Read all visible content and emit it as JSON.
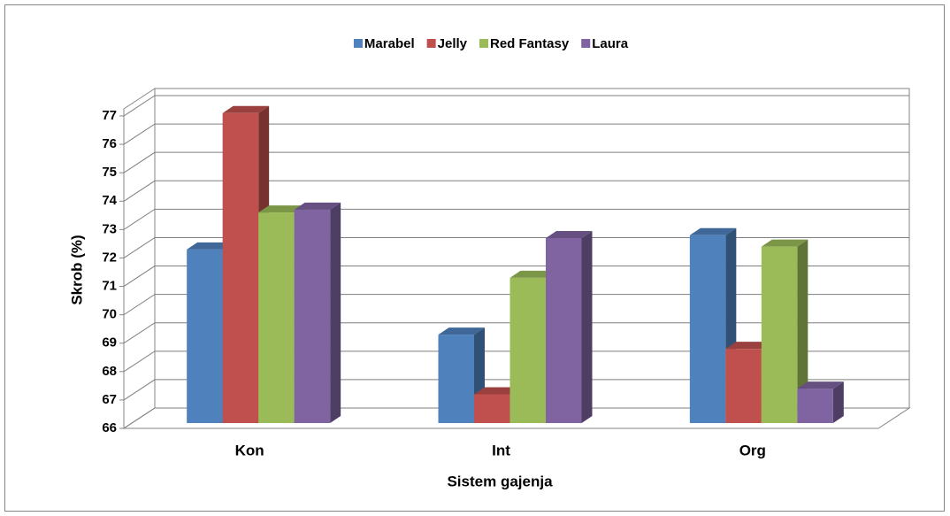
{
  "chart_data": {
    "type": "bar3d",
    "x_label": "Sistem gajenja",
    "y_label": "Skrob (%)",
    "categories": [
      "Kon",
      "Int",
      "Org"
    ],
    "series": [
      {
        "name": "Marabel",
        "color": "#4f81bd",
        "values": [
          72.3,
          69.3,
          72.8
        ]
      },
      {
        "name": "Jelly",
        "color": "#c0504d",
        "values": [
          77.1,
          67.2,
          68.8
        ]
      },
      {
        "name": "Red Fantasy",
        "color": "#9bbb59",
        "values": [
          73.6,
          71.3,
          72.4
        ]
      },
      {
        "name": "Laura",
        "color": "#8064a2",
        "values": [
          73.7,
          72.7,
          67.4
        ]
      }
    ],
    "ylim": [
      66,
      77
    ],
    "yticks": [
      66,
      67,
      68,
      69,
      70,
      71,
      72,
      73,
      74,
      75,
      76,
      77
    ],
    "grid": true,
    "legend": "top"
  }
}
